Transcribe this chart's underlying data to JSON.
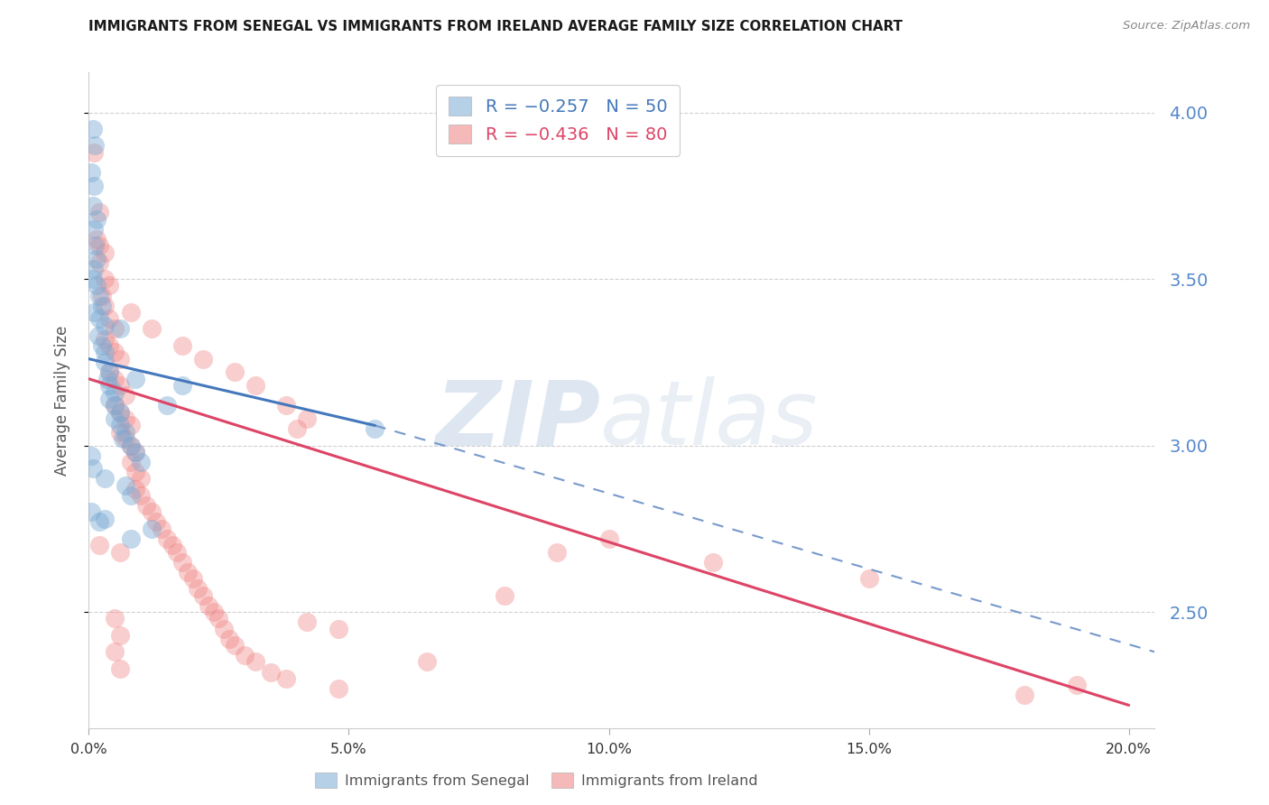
{
  "title": "IMMIGRANTS FROM SENEGAL VS IMMIGRANTS FROM IRELAND AVERAGE FAMILY SIZE CORRELATION CHART",
  "source": "Source: ZipAtlas.com",
  "ylabel": "Average Family Size",
  "xlim": [
    0.0,
    0.205
  ],
  "ylim": [
    2.15,
    4.12
  ],
  "yticks_right": [
    2.5,
    3.0,
    3.5,
    4.0
  ],
  "xticks": [
    0.0,
    0.05,
    0.1,
    0.15,
    0.2
  ],
  "xtick_labels": [
    "0.0%",
    "5.0%",
    "10.0%",
    "15.0%",
    "20.0%"
  ],
  "senegal_color": "#7aaad4",
  "ireland_color": "#f08080",
  "right_axis_color": "#5588cc",
  "grid_color": "#d0d0d0",
  "watermark_color": "#c8d8e8",
  "senegal_trend": [
    0.0,
    3.26,
    0.055,
    3.06
  ],
  "ireland_trend": [
    0.0,
    3.2,
    0.2,
    2.22
  ],
  "dashed_trend": [
    0.055,
    3.06,
    0.205,
    2.38
  ],
  "senegal_points": [
    [
      0.0005,
      3.82
    ],
    [
      0.001,
      3.78
    ],
    [
      0.0008,
      3.72
    ],
    [
      0.001,
      3.65
    ],
    [
      0.0012,
      3.6
    ],
    [
      0.0015,
      3.56
    ],
    [
      0.001,
      3.53
    ],
    [
      0.0008,
      3.5
    ],
    [
      0.0015,
      3.48
    ],
    [
      0.002,
      3.45
    ],
    [
      0.0025,
      3.42
    ],
    [
      0.001,
      3.4
    ],
    [
      0.002,
      3.38
    ],
    [
      0.003,
      3.36
    ],
    [
      0.0018,
      3.33
    ],
    [
      0.0025,
      3.3
    ],
    [
      0.003,
      3.28
    ],
    [
      0.003,
      3.25
    ],
    [
      0.004,
      3.22
    ],
    [
      0.0035,
      3.2
    ],
    [
      0.004,
      3.18
    ],
    [
      0.005,
      3.16
    ],
    [
      0.004,
      3.14
    ],
    [
      0.005,
      3.12
    ],
    [
      0.006,
      3.1
    ],
    [
      0.005,
      3.08
    ],
    [
      0.006,
      3.06
    ],
    [
      0.007,
      3.04
    ],
    [
      0.0065,
      3.02
    ],
    [
      0.008,
      3.0
    ],
    [
      0.009,
      2.98
    ],
    [
      0.01,
      2.95
    ],
    [
      0.0008,
      2.93
    ],
    [
      0.003,
      2.9
    ],
    [
      0.007,
      2.88
    ],
    [
      0.008,
      2.85
    ],
    [
      0.0005,
      2.8
    ],
    [
      0.002,
      2.77
    ],
    [
      0.012,
      2.75
    ],
    [
      0.0008,
      3.95
    ],
    [
      0.0012,
      3.9
    ],
    [
      0.006,
      3.35
    ],
    [
      0.009,
      3.2
    ],
    [
      0.055,
      3.05
    ],
    [
      0.0005,
      2.97
    ],
    [
      0.003,
      2.78
    ],
    [
      0.015,
      3.12
    ],
    [
      0.008,
      2.72
    ],
    [
      0.018,
      3.18
    ],
    [
      0.0015,
      3.68
    ]
  ],
  "ireland_points": [
    [
      0.001,
      3.88
    ],
    [
      0.002,
      3.7
    ],
    [
      0.0015,
      3.62
    ],
    [
      0.003,
      3.58
    ],
    [
      0.002,
      3.55
    ],
    [
      0.003,
      3.5
    ],
    [
      0.004,
      3.48
    ],
    [
      0.0025,
      3.45
    ],
    [
      0.003,
      3.42
    ],
    [
      0.004,
      3.38
    ],
    [
      0.005,
      3.35
    ],
    [
      0.003,
      3.32
    ],
    [
      0.004,
      3.3
    ],
    [
      0.005,
      3.28
    ],
    [
      0.006,
      3.26
    ],
    [
      0.004,
      3.22
    ],
    [
      0.005,
      3.2
    ],
    [
      0.006,
      3.18
    ],
    [
      0.007,
      3.15
    ],
    [
      0.005,
      3.12
    ],
    [
      0.006,
      3.1
    ],
    [
      0.007,
      3.08
    ],
    [
      0.008,
      3.06
    ],
    [
      0.006,
      3.04
    ],
    [
      0.007,
      3.02
    ],
    [
      0.008,
      3.0
    ],
    [
      0.009,
      2.98
    ],
    [
      0.008,
      2.95
    ],
    [
      0.009,
      2.92
    ],
    [
      0.01,
      2.9
    ],
    [
      0.009,
      2.87
    ],
    [
      0.01,
      2.85
    ],
    [
      0.011,
      2.82
    ],
    [
      0.012,
      2.8
    ],
    [
      0.013,
      2.77
    ],
    [
      0.014,
      2.75
    ],
    [
      0.015,
      2.72
    ],
    [
      0.016,
      2.7
    ],
    [
      0.017,
      2.68
    ],
    [
      0.018,
      2.65
    ],
    [
      0.019,
      2.62
    ],
    [
      0.02,
      2.6
    ],
    [
      0.021,
      2.57
    ],
    [
      0.022,
      2.55
    ],
    [
      0.023,
      2.52
    ],
    [
      0.024,
      2.5
    ],
    [
      0.025,
      2.48
    ],
    [
      0.026,
      2.45
    ],
    [
      0.027,
      2.42
    ],
    [
      0.028,
      2.4
    ],
    [
      0.03,
      2.37
    ],
    [
      0.032,
      2.35
    ],
    [
      0.035,
      2.32
    ],
    [
      0.038,
      2.3
    ],
    [
      0.042,
      2.47
    ],
    [
      0.048,
      2.45
    ],
    [
      0.008,
      3.4
    ],
    [
      0.012,
      3.35
    ],
    [
      0.018,
      3.3
    ],
    [
      0.022,
      3.26
    ],
    [
      0.028,
      3.22
    ],
    [
      0.032,
      3.18
    ],
    [
      0.038,
      3.12
    ],
    [
      0.042,
      3.08
    ],
    [
      0.1,
      2.72
    ],
    [
      0.09,
      2.68
    ],
    [
      0.12,
      2.65
    ],
    [
      0.15,
      2.6
    ],
    [
      0.18,
      2.25
    ],
    [
      0.19,
      2.28
    ],
    [
      0.08,
      2.55
    ],
    [
      0.005,
      2.48
    ],
    [
      0.006,
      2.43
    ],
    [
      0.005,
      2.38
    ],
    [
      0.006,
      2.33
    ],
    [
      0.048,
      2.27
    ],
    [
      0.065,
      2.35
    ],
    [
      0.006,
      2.68
    ],
    [
      0.04,
      3.05
    ],
    [
      0.002,
      3.6
    ],
    [
      0.002,
      2.7
    ]
  ]
}
